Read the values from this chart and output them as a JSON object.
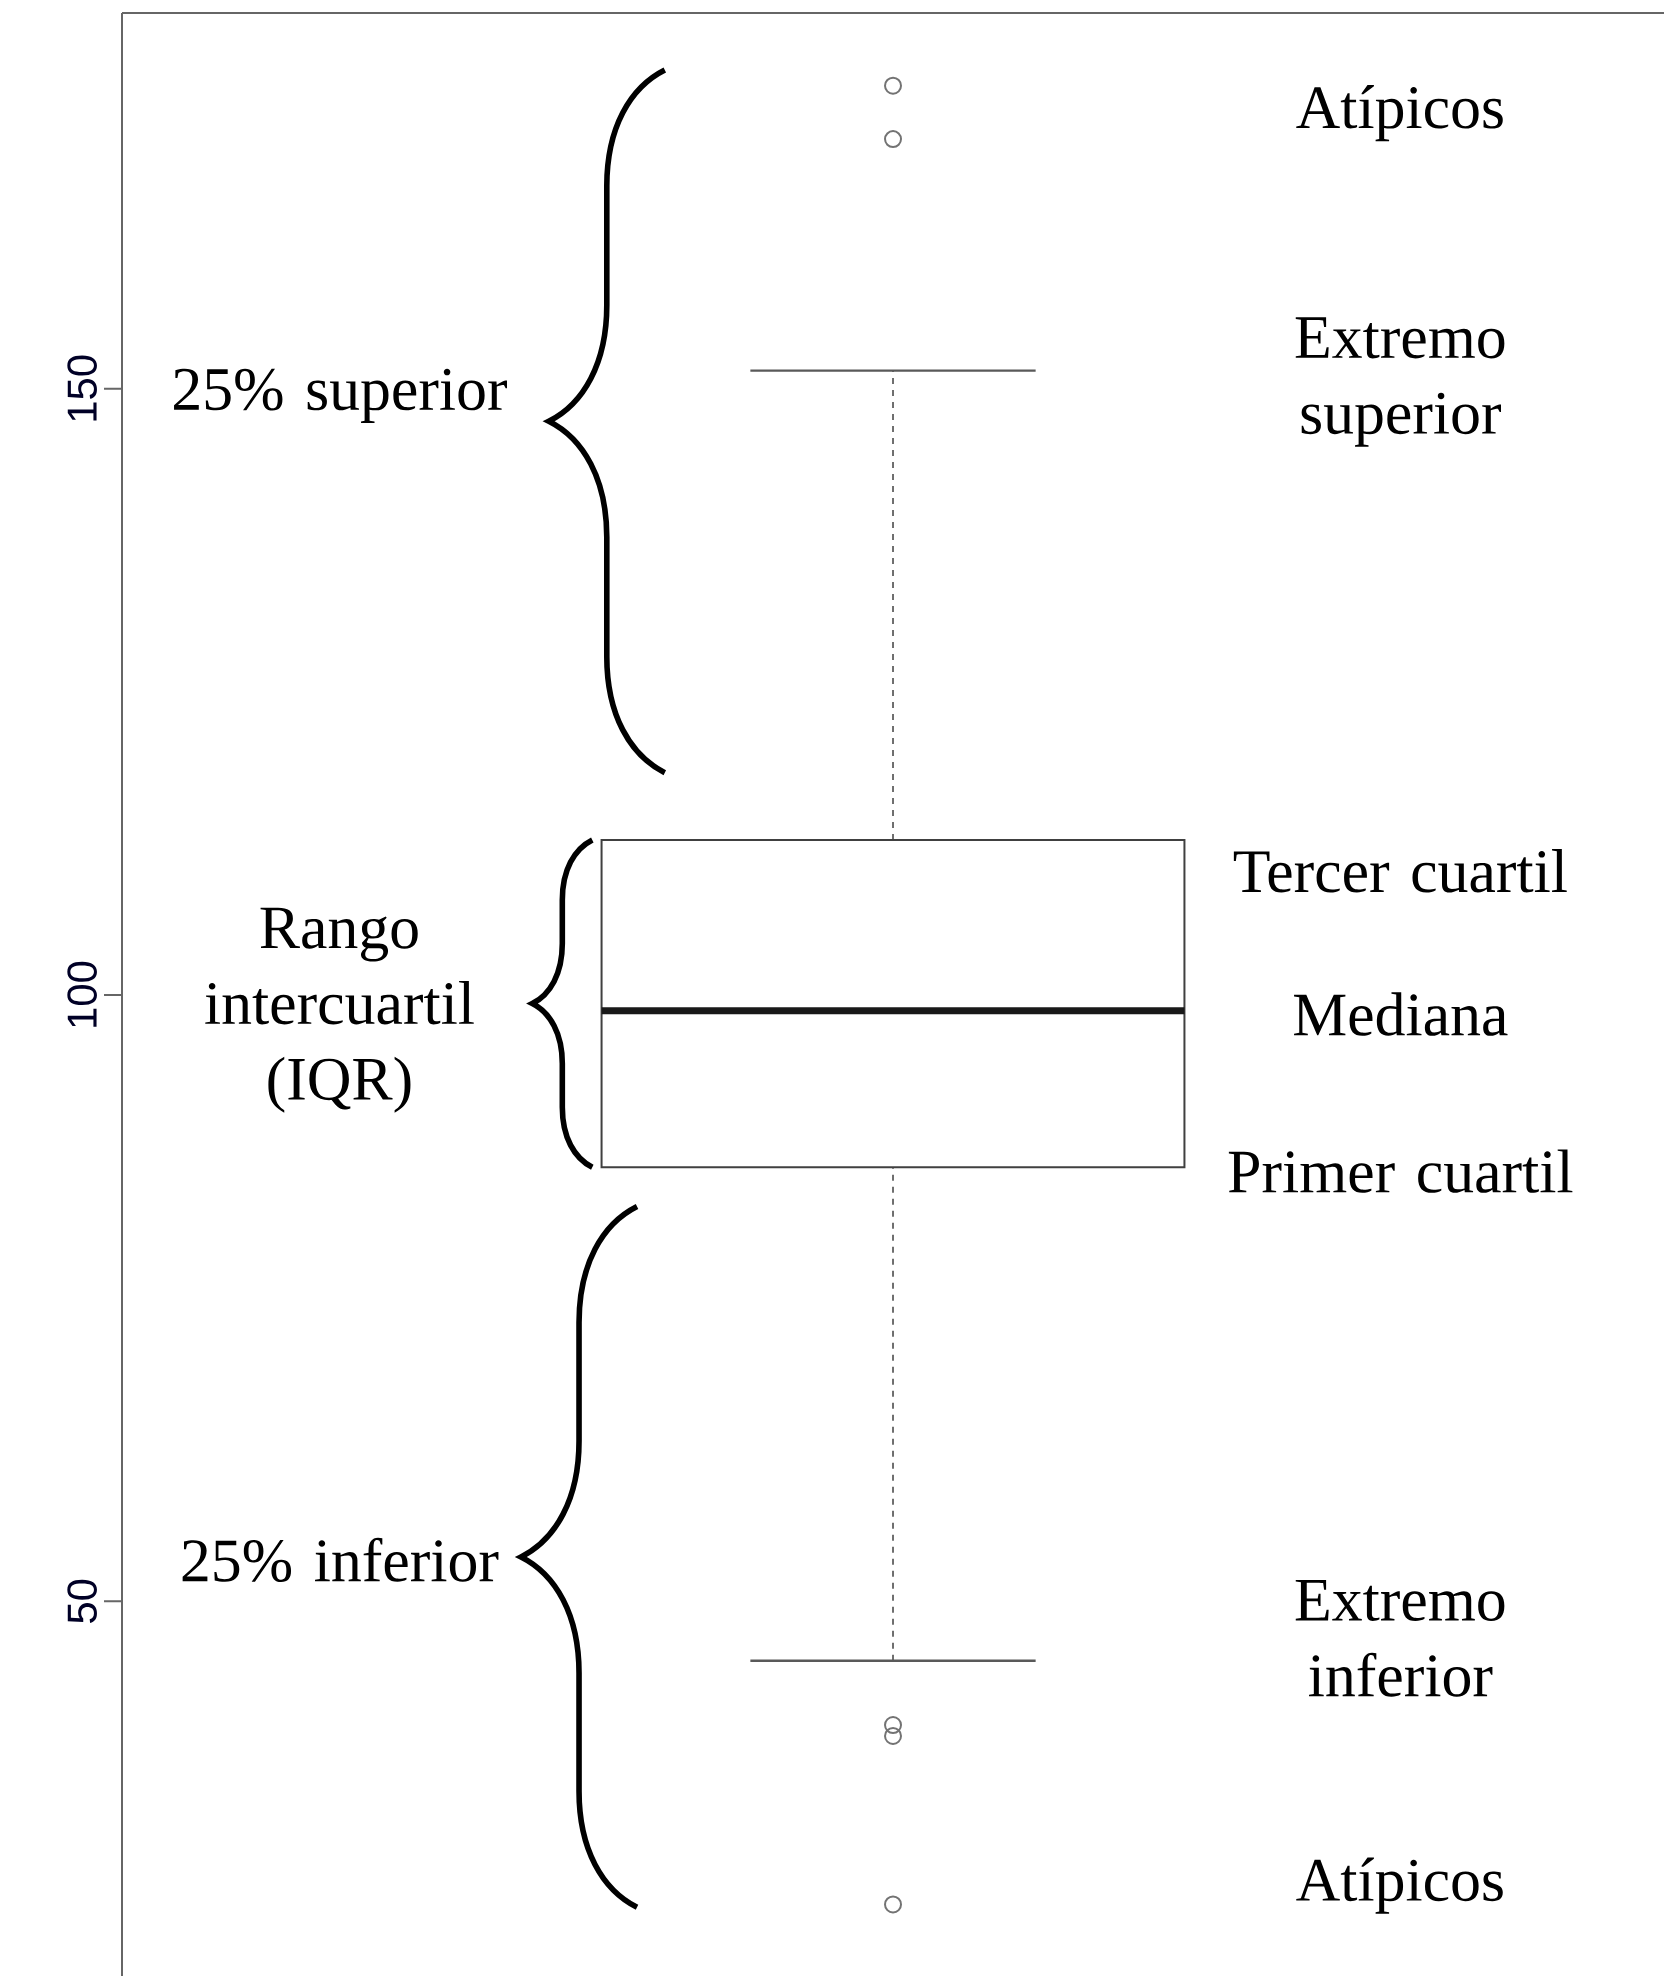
{
  "chart_data": {
    "type": "box",
    "categories": [
      null
    ],
    "boxes": [
      {
        "low": 45.1,
        "q1": 85.8,
        "median": 98.7,
        "q3": 112.8,
        "high": 151.5,
        "outliers": [
          175.0,
          170.6,
          39.8,
          38.9,
          25.0
        ]
      }
    ],
    "ylim": [
      19.1,
      181.0
    ],
    "yticks": [
      50,
      100,
      150
    ],
    "tick_labels": "y",
    "annotations": [
      "Atípicos",
      "Extremo superior",
      "Tercer cuartil",
      "Mediana",
      "Primer cuartil",
      "Extremo inferior",
      "Atípicos",
      "25% superior",
      "Rango intercuartil (IQR)",
      "25% inferior"
    ]
  }
}
